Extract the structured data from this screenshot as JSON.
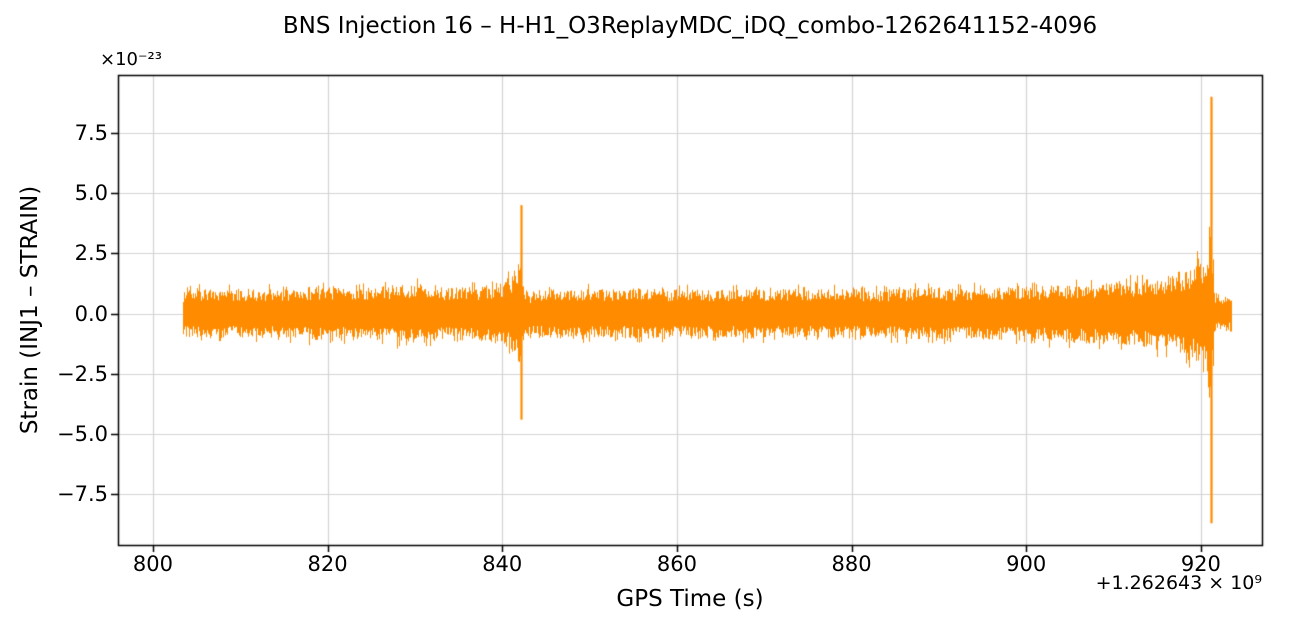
{
  "chart_data": {
    "type": "line",
    "title": "BNS Injection 16 – H-H1_O3ReplayMDC_iDQ_combo-1262641152-4096",
    "xlabel": "GPS Time (s)",
    "ylabel": "Strain (INJ1 – STRAIN)",
    "y_offset_text": "×10⁻²³",
    "x_offset_text": "+1.262643 × 10⁹",
    "grid": true,
    "legend": "none",
    "series_color": "#ff8c00",
    "grid_color": "#d3d3d3",
    "axis_color": "#000000",
    "xlim": [
      796,
      927
    ],
    "ylim": [
      -9.6,
      9.9
    ],
    "x_ticks": {
      "values": [
        800,
        820,
        840,
        860,
        880,
        900,
        920
      ],
      "labels": [
        "800",
        "820",
        "840",
        "860",
        "880",
        "900",
        "920"
      ]
    },
    "y_ticks": {
      "values": [
        -7.5,
        -5.0,
        -2.5,
        0.0,
        2.5,
        5.0,
        7.5
      ],
      "labels": [
        "−7.5",
        "−5.0",
        "−2.5",
        "0.0",
        "2.5",
        "5.0",
        "7.5"
      ]
    },
    "series": [
      {
        "name": "Strain (INJ1 − STRAIN)",
        "units": "1e-23",
        "x_start": 803.5,
        "x_end": 923.5,
        "noise_envelope": [
          [
            803.5,
            0.95
          ],
          [
            806,
            1.05
          ],
          [
            809,
            1.0
          ],
          [
            812,
            1.05
          ],
          [
            815,
            1.0
          ],
          [
            818,
            1.1
          ],
          [
            821,
            1.1
          ],
          [
            824,
            1.05
          ],
          [
            827,
            1.2
          ],
          [
            829,
            1.3
          ],
          [
            831,
            1.25
          ],
          [
            833,
            1.1
          ],
          [
            835,
            1.15
          ],
          [
            837,
            1.1
          ],
          [
            839,
            1.25
          ],
          [
            840.5,
            1.45
          ],
          [
            841.5,
            1.9
          ],
          [
            842.0,
            2.3
          ],
          [
            842.3,
            1.2
          ],
          [
            843,
            0.85
          ],
          [
            844,
            1.0
          ],
          [
            846,
            1.05
          ],
          [
            848,
            1.0
          ],
          [
            850,
            1.05
          ],
          [
            853,
            1.0
          ],
          [
            856,
            1.05
          ],
          [
            859,
            1.0
          ],
          [
            862,
            1.05
          ],
          [
            865,
            1.0
          ],
          [
            868,
            1.05
          ],
          [
            871,
            1.0
          ],
          [
            874,
            1.05
          ],
          [
            877,
            1.0
          ],
          [
            880,
            1.05
          ],
          [
            883,
            1.0
          ],
          [
            886,
            1.05
          ],
          [
            889,
            1.1
          ],
          [
            892,
            1.05
          ],
          [
            895,
            1.1
          ],
          [
            898,
            1.1
          ],
          [
            901,
            1.15
          ],
          [
            904,
            1.2
          ],
          [
            907,
            1.25
          ],
          [
            910,
            1.3
          ],
          [
            912,
            1.35
          ],
          [
            914,
            1.45
          ],
          [
            916,
            1.6
          ],
          [
            917.5,
            1.75
          ],
          [
            919,
            2.0
          ],
          [
            920,
            2.3
          ],
          [
            920.7,
            2.8
          ],
          [
            921.05,
            3.3
          ],
          [
            921.4,
            0.9
          ],
          [
            922,
            0.7
          ],
          [
            923.5,
            0.75
          ]
        ],
        "spikes": [
          {
            "x": 842.15,
            "peak_up": 4.5,
            "peak_down": -4.4
          },
          {
            "x": 921.15,
            "peak_up": 9.0,
            "peak_down": -8.7
          }
        ]
      }
    ]
  }
}
